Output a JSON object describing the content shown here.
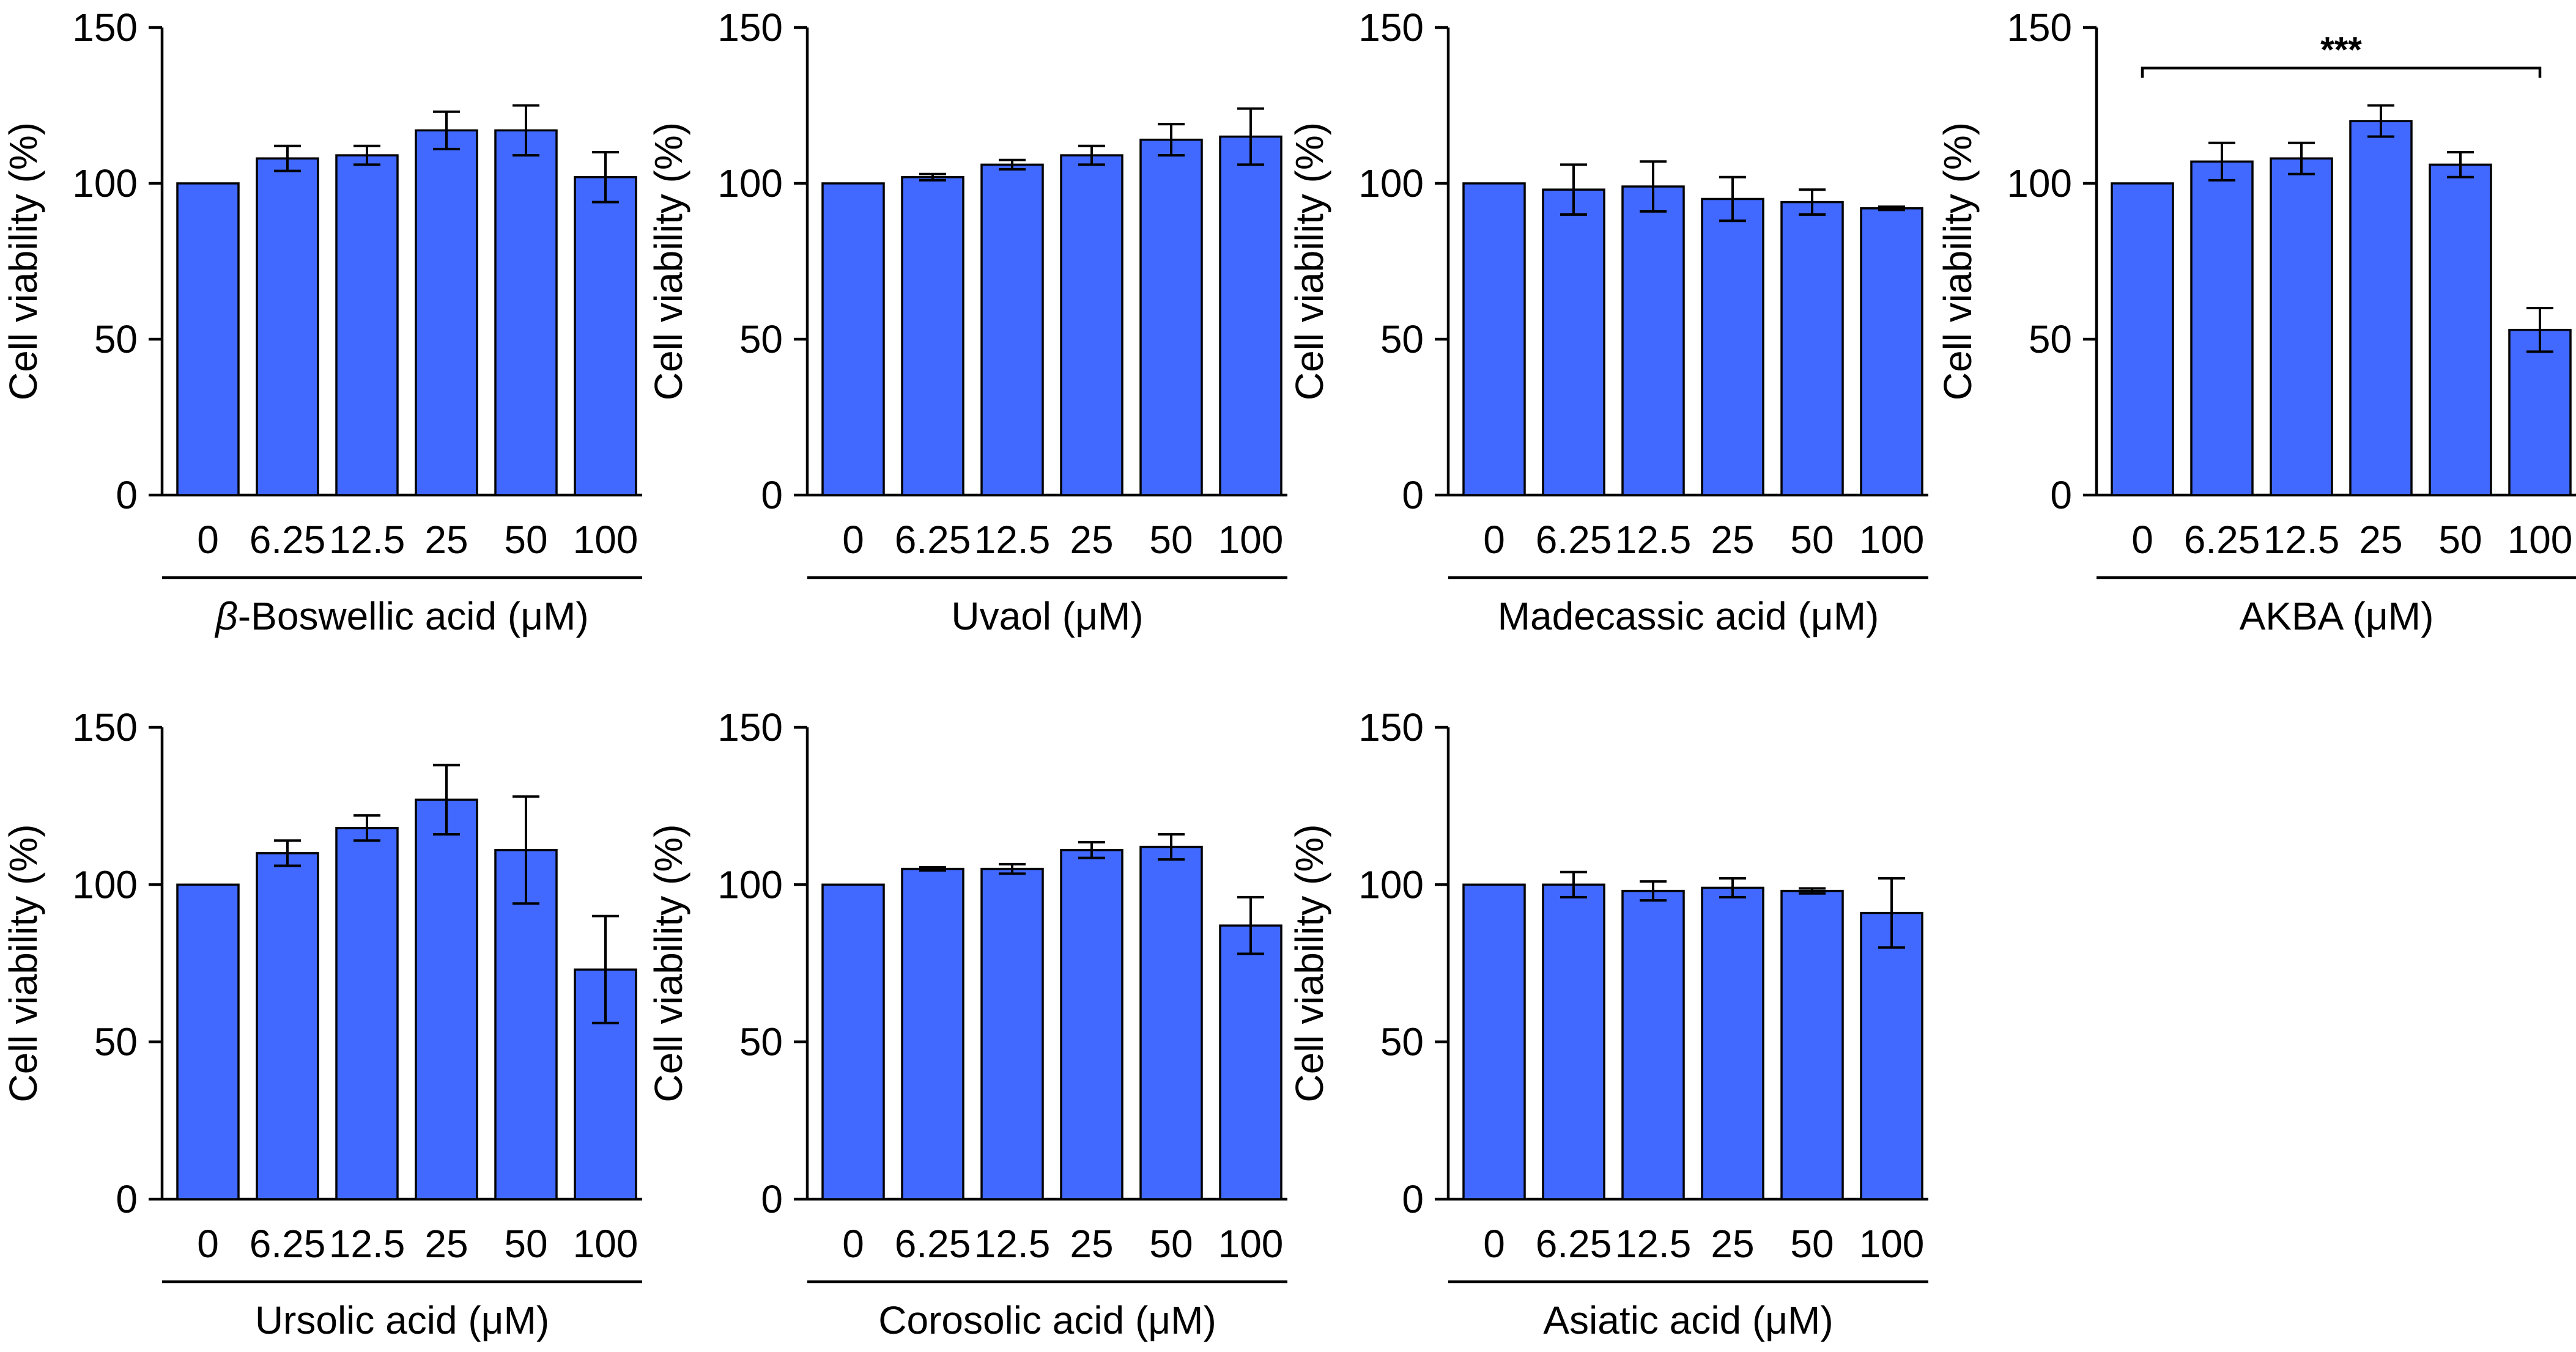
{
  "chart_data": [
    {
      "type": "bar",
      "title": "",
      "xlabel": "β-Boswellic acid (μM)",
      "xlabel_prefix": "β",
      "xlabel_rest": "-Boswellic acid (μM)",
      "ylabel": "Cell viability (%)",
      "ylim": [
        0,
        150
      ],
      "yticks": [
        "0",
        "50",
        "100",
        "150"
      ],
      "categories": [
        "0",
        "6.25",
        "12.5",
        "25",
        "50",
        "100"
      ],
      "values": [
        100,
        108,
        109,
        117,
        117,
        102
      ],
      "errors": [
        0,
        4,
        3,
        6,
        8,
        8
      ],
      "annotation": null
    },
    {
      "type": "bar",
      "title": "",
      "xlabel": "Uvaol (μM)",
      "ylabel": "Cell viability (%)",
      "ylim": [
        0,
        150
      ],
      "yticks": [
        "0",
        "50",
        "100",
        "150"
      ],
      "categories": [
        "0",
        "6.25",
        "12.5",
        "25",
        "50",
        "100"
      ],
      "values": [
        100,
        102,
        106,
        109,
        114,
        115
      ],
      "errors": [
        0,
        1,
        1.5,
        3,
        5,
        9
      ],
      "annotation": null
    },
    {
      "type": "bar",
      "title": "",
      "xlabel": "Madecassic acid (μM)",
      "ylabel": "Cell viability (%)",
      "ylim": [
        0,
        150
      ],
      "yticks": [
        "0",
        "50",
        "100",
        "150"
      ],
      "categories": [
        "0",
        "6.25",
        "12.5",
        "25",
        "50",
        "100"
      ],
      "values": [
        100,
        98,
        99,
        95,
        94,
        92
      ],
      "errors": [
        0,
        8,
        8,
        7,
        4,
        0.5
      ],
      "annotation": null
    },
    {
      "type": "bar",
      "title": "",
      "xlabel": "AKBA (μM)",
      "ylabel": "Cell viability (%)",
      "ylim": [
        0,
        150
      ],
      "yticks": [
        "0",
        "50",
        "100",
        "150"
      ],
      "categories": [
        "0",
        "6.25",
        "12.5",
        "25",
        "50",
        "100"
      ],
      "values": [
        100,
        107,
        108,
        120,
        106,
        53
      ],
      "errors": [
        0,
        6,
        5,
        5,
        4,
        7
      ],
      "annotation": {
        "text": "***",
        "from": "0",
        "to": "100",
        "level": 137
      }
    },
    {
      "type": "bar",
      "title": "",
      "xlabel": "Ursolic acid (μM)",
      "ylabel": "Cell viability (%)",
      "ylim": [
        0,
        150
      ],
      "yticks": [
        "0",
        "50",
        "100",
        "150"
      ],
      "categories": [
        "0",
        "6.25",
        "12.5",
        "25",
        "50",
        "100"
      ],
      "values": [
        100,
        110,
        118,
        127,
        111,
        73
      ],
      "errors": [
        0,
        4,
        4,
        11,
        17,
        17
      ],
      "annotation": null
    },
    {
      "type": "bar",
      "title": "",
      "xlabel": "Corosolic acid (μM)",
      "ylabel": "Cell viability (%)",
      "ylim": [
        0,
        150
      ],
      "yticks": [
        "0",
        "50",
        "100",
        "150"
      ],
      "categories": [
        "0",
        "6.25",
        "12.5",
        "25",
        "50",
        "100"
      ],
      "values": [
        100,
        105,
        105,
        111,
        112,
        87
      ],
      "errors": [
        0,
        0.5,
        1.5,
        2.5,
        4,
        9
      ],
      "annotation": null
    },
    {
      "type": "bar",
      "title": "",
      "xlabel": "Asiatic acid (μM)",
      "ylabel": "Cell viability (%)",
      "ylim": [
        0,
        150
      ],
      "yticks": [
        "0",
        "50",
        "100",
        "150"
      ],
      "categories": [
        "0",
        "6.25",
        "12.5",
        "25",
        "50",
        "100"
      ],
      "values": [
        100,
        100,
        98,
        99,
        98,
        91
      ],
      "errors": [
        0,
        4,
        3,
        3,
        0.8,
        11
      ],
      "annotation": null
    }
  ]
}
